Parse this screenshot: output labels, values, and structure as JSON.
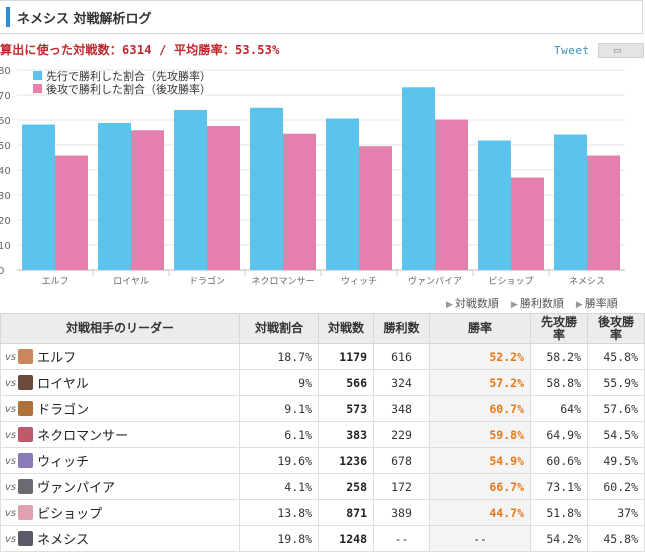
{
  "header": {
    "title": "ネメシス 対戦解析ログ"
  },
  "summary": {
    "text": "算出に使った対戦数：6314 / 平均勝率：53.53%"
  },
  "tweet": {
    "label": "Tweet",
    "icon": "bookmark-icon"
  },
  "chart_data": {
    "type": "bar",
    "categories": [
      "エルフ",
      "ロイヤル",
      "ドラゴン",
      "ネクロマンサー",
      "ウィッチ",
      "ヴァンパイア",
      "ビショップ",
      "ネメシス"
    ],
    "series": [
      {
        "name": "先行で勝利した割合（先攻勝率）",
        "values": [
          58.2,
          58.8,
          64,
          64.9,
          60.6,
          73.1,
          51.8,
          54.2
        ],
        "color": "#5bc3ec"
      },
      {
        "name": "後攻で勝利した割合（後攻勝率）",
        "values": [
          45.8,
          55.9,
          57.6,
          54.5,
          49.5,
          60.2,
          37.0,
          45.8
        ],
        "color": "#e57fad"
      }
    ],
    "yticks": [
      "0",
      "10",
      "20",
      "30",
      "40",
      "50",
      "60",
      "70",
      "80"
    ],
    "ylim": [
      0,
      80
    ],
    "grid": true,
    "legend": "top-left"
  },
  "sort": {
    "items": [
      "対戦数順",
      "勝利数順",
      "勝率順"
    ]
  },
  "table": {
    "headers": [
      "対戦相手のリーダー",
      "対戦割合",
      "対戦数",
      "勝利数",
      "勝率",
      "先攻勝率",
      "後攻勝率"
    ],
    "vs_label": "vs",
    "rows": [
      {
        "name": "エルフ",
        "ratio": "18.7%",
        "games": "1179",
        "wins": "616",
        "rate": "52.2%",
        "first": "58.2%",
        "second": "45.8%",
        "avatar_color": "#c9875a"
      },
      {
        "name": "ロイヤル",
        "ratio": "9%",
        "games": "566",
        "wins": "324",
        "rate": "57.2%",
        "first": "58.8%",
        "second": "55.9%",
        "avatar_color": "#6b4a3a"
      },
      {
        "name": "ドラゴン",
        "ratio": "9.1%",
        "games": "573",
        "wins": "348",
        "rate": "60.7%",
        "first": "64%",
        "second": "57.6%",
        "avatar_color": "#b0703a"
      },
      {
        "name": "ネクロマンサー",
        "ratio": "6.1%",
        "games": "383",
        "wins": "229",
        "rate": "59.8%",
        "first": "64.9%",
        "second": "54.5%",
        "avatar_color": "#c05a6a"
      },
      {
        "name": "ウィッチ",
        "ratio": "19.6%",
        "games": "1236",
        "wins": "678",
        "rate": "54.9%",
        "first": "60.6%",
        "second": "49.5%",
        "avatar_color": "#8a7ab8"
      },
      {
        "name": "ヴァンパイア",
        "ratio": "4.1%",
        "games": "258",
        "wins": "172",
        "rate": "66.7%",
        "first": "73.1%",
        "second": "60.2%",
        "avatar_color": "#6a6a72"
      },
      {
        "name": "ビショップ",
        "ratio": "13.8%",
        "games": "871",
        "wins": "389",
        "rate": "44.7%",
        "first": "51.8%",
        "second": "37%",
        "avatar_color": "#e0a0b0"
      },
      {
        "name": "ネメシス",
        "ratio": "19.8%",
        "games": "1248",
        "wins": "--",
        "rate": "--",
        "first": "54.2%",
        "second": "45.8%",
        "avatar_color": "#5a5a66"
      }
    ]
  }
}
